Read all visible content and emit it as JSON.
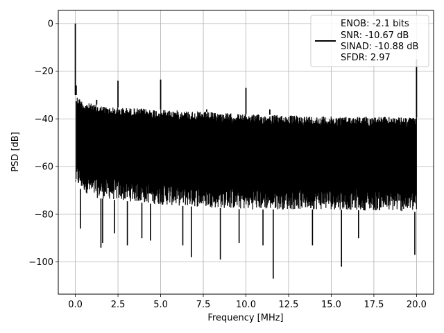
{
  "chart_data": {
    "type": "line",
    "xlabel": "Frequency [MHz]",
    "ylabel": "PSD [dB]",
    "xlim": [
      -1.0,
      21.0
    ],
    "ylim": [
      -113.5,
      5.5
    ],
    "grid": true,
    "legend_placement": "top-right",
    "x_ticks": [
      {
        "value": 0.0,
        "label": "0.0"
      },
      {
        "value": 2.5,
        "label": "2.5"
      },
      {
        "value": 5.0,
        "label": "5.0"
      },
      {
        "value": 7.5,
        "label": "7.5"
      },
      {
        "value": 10.0,
        "label": "10.0"
      },
      {
        "value": 12.5,
        "label": "12.5"
      },
      {
        "value": 15.0,
        "label": "15.0"
      },
      {
        "value": 17.5,
        "label": "17.5"
      },
      {
        "value": 20.0,
        "label": "20.0"
      }
    ],
    "y_ticks": [
      {
        "value": 0,
        "label": "0"
      },
      {
        "value": -20,
        "label": "−20"
      },
      {
        "value": -40,
        "label": "−40"
      },
      {
        "value": -60,
        "label": "−60"
      },
      {
        "value": -80,
        "label": "−80"
      },
      {
        "value": -100,
        "label": "−100"
      }
    ],
    "legend": [
      "ENOB: -2.1 bits",
      "SNR: -10.67 dB",
      "SINAD: -10.88 dB",
      "SFDR: 2.97"
    ],
    "series_color": "#000000",
    "noise_floor_upper": [
      {
        "x": 0.05,
        "y": -30
      },
      {
        "x": 0.5,
        "y": -33
      },
      {
        "x": 2.0,
        "y": -35
      },
      {
        "x": 5.0,
        "y": -36
      },
      {
        "x": 7.5,
        "y": -37
      },
      {
        "x": 10.0,
        "y": -38
      },
      {
        "x": 12.5,
        "y": -38.5
      },
      {
        "x": 15.0,
        "y": -39
      },
      {
        "x": 17.5,
        "y": -39
      },
      {
        "x": 20.0,
        "y": -39.5
      }
    ],
    "noise_floor_lower": [
      {
        "x": 0.05,
        "y": -68
      },
      {
        "x": 1.0,
        "y": -73
      },
      {
        "x": 5.0,
        "y": -76
      },
      {
        "x": 10.0,
        "y": -78
      },
      {
        "x": 15.0,
        "y": -78
      },
      {
        "x": 20.0,
        "y": -79
      }
    ],
    "spurs": [
      {
        "x": 0.0,
        "y": 0.0
      },
      {
        "x": 0.05,
        "y": -26
      },
      {
        "x": 1.25,
        "y": -32
      },
      {
        "x": 2.5,
        "y": -24
      },
      {
        "x": 5.0,
        "y": -23.5
      },
      {
        "x": 7.7,
        "y": -36
      },
      {
        "x": 10.0,
        "y": -27
      },
      {
        "x": 11.4,
        "y": -36
      },
      {
        "x": 20.0,
        "y": -15
      }
    ],
    "dips": [
      {
        "x": 0.3,
        "y": -86
      },
      {
        "x": 1.5,
        "y": -94
      },
      {
        "x": 1.6,
        "y": -92
      },
      {
        "x": 2.3,
        "y": -88
      },
      {
        "x": 3.05,
        "y": -93
      },
      {
        "x": 3.9,
        "y": -90
      },
      {
        "x": 4.4,
        "y": -91
      },
      {
        "x": 6.3,
        "y": -93
      },
      {
        "x": 6.8,
        "y": -98
      },
      {
        "x": 8.5,
        "y": -99
      },
      {
        "x": 9.6,
        "y": -92
      },
      {
        "x": 11.0,
        "y": -93
      },
      {
        "x": 11.6,
        "y": -107
      },
      {
        "x": 13.9,
        "y": -93
      },
      {
        "x": 15.6,
        "y": -102
      },
      {
        "x": 16.6,
        "y": -90
      },
      {
        "x": 19.9,
        "y": -97
      }
    ]
  }
}
